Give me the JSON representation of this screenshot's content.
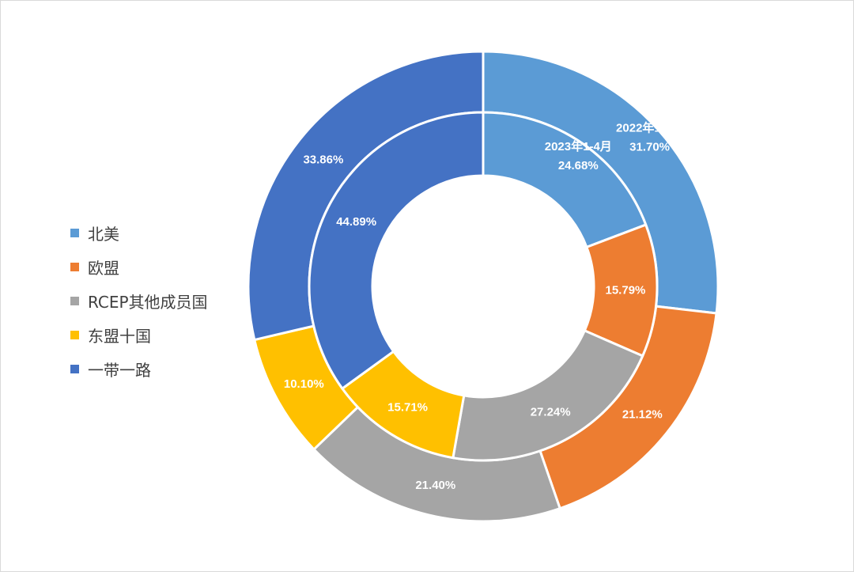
{
  "chart_data": {
    "type": "pie",
    "subtype": "nested-donut",
    "categories": [
      "北美",
      "欧盟",
      "RCEP其他成员国",
      "东盟十国",
      "一带一路"
    ],
    "colors": [
      "#5B9BD5",
      "#ED7D31",
      "#A5A5A5",
      "#FFC000",
      "#4472C4"
    ],
    "series": [
      {
        "name": "2022年1-4月",
        "ring": "outer",
        "values": [
          31.7,
          21.12,
          21.4,
          10.1,
          33.86
        ],
        "labels": [
          "31.70%",
          "21.12%",
          "21.40%",
          "10.10%",
          "33.86%"
        ]
      },
      {
        "name": "2023年1-4月",
        "ring": "inner",
        "values": [
          24.68,
          15.79,
          27.24,
          15.71,
          44.89
        ],
        "labels": [
          "24.68%",
          "15.79%",
          "27.24%",
          "15.71%",
          "44.89%"
        ]
      }
    ],
    "legend": {
      "position": "left",
      "items": [
        "北美",
        "欧盟",
        "RCEP其他成员国",
        "东盟十国",
        "一带一路"
      ]
    }
  }
}
